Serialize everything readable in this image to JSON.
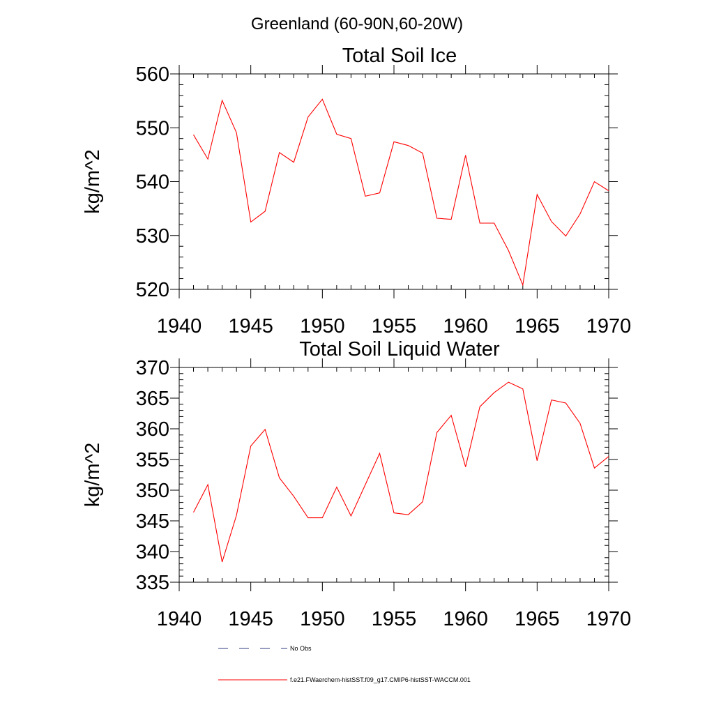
{
  "figure": {
    "title": "Greenland (60-90N,60-20W)"
  },
  "colors": {
    "axis": "#000000",
    "series": "#ff0000",
    "no_obs": "#2e3b80"
  },
  "legend": {
    "items": [
      {
        "label": "No Obs",
        "style": "dashed",
        "color": "#2e3b80"
      },
      {
        "label": "f.e21.FWaerchem-histSST.f09_g17.CMIP6-histSST-WACCM.001",
        "style": "solid",
        "color": "#ff0000"
      }
    ]
  },
  "chart_data": [
    {
      "type": "line",
      "title": "Total Soil Ice",
      "xlabel": "",
      "ylabel": "kg/m^2",
      "xlim": [
        1940,
        1970
      ],
      "ylim": [
        520,
        560
      ],
      "x_ticks": [
        1940,
        1945,
        1950,
        1955,
        1960,
        1965,
        1970
      ],
      "y_ticks": [
        520,
        530,
        540,
        550,
        560
      ],
      "x_minor_step": 1,
      "y_minor_step": 2,
      "grid": false,
      "series": [
        {
          "name": "f.e21.FWaerchem-histSST.f09_g17.CMIP6-histSST-WACCM.001",
          "color": "#ff0000",
          "x": [
            1941,
            1942,
            1943,
            1944,
            1945,
            1946,
            1947,
            1948,
            1949,
            1950,
            1951,
            1952,
            1953,
            1954,
            1955,
            1956,
            1957,
            1958,
            1959,
            1960,
            1961,
            1962,
            1963,
            1964,
            1965,
            1966,
            1967,
            1968,
            1969,
            1970
          ],
          "y": [
            548.7,
            544.2,
            555.1,
            549.1,
            532.5,
            534.5,
            545.4,
            543.6,
            552.0,
            555.3,
            548.8,
            548.0,
            537.3,
            537.9,
            547.4,
            546.7,
            545.3,
            533.2,
            533.0,
            544.9,
            532.3,
            532.3,
            527.2,
            520.8,
            537.6,
            532.6,
            529.9,
            534.0,
            540.0,
            538.3
          ]
        }
      ]
    },
    {
      "type": "line",
      "title": "Total Soil Liquid Water",
      "xlabel": "",
      "ylabel": "kg/m^2",
      "xlim": [
        1940,
        1970
      ],
      "ylim": [
        335,
        370
      ],
      "x_ticks": [
        1940,
        1945,
        1950,
        1955,
        1960,
        1965,
        1970
      ],
      "y_ticks": [
        335,
        340,
        345,
        350,
        355,
        360,
        365,
        370
      ],
      "x_minor_step": 1,
      "y_minor_step": 1,
      "grid": false,
      "series": [
        {
          "name": "f.e21.FWaerchem-histSST.f09_g17.CMIP6-histSST-WACCM.001",
          "color": "#ff0000",
          "x": [
            1941,
            1942,
            1943,
            1944,
            1945,
            1946,
            1947,
            1948,
            1949,
            1950,
            1951,
            1952,
            1953,
            1954,
            1955,
            1956,
            1957,
            1958,
            1959,
            1960,
            1961,
            1962,
            1963,
            1964,
            1965,
            1966,
            1967,
            1968,
            1969,
            1970
          ],
          "y": [
            346.4,
            350.9,
            338.3,
            345.9,
            357.2,
            359.9,
            352.0,
            349.0,
            345.5,
            345.5,
            350.5,
            345.8,
            350.9,
            356.0,
            346.3,
            346.0,
            348.1,
            359.4,
            362.2,
            353.8,
            363.6,
            365.9,
            367.6,
            366.5,
            354.8,
            364.7,
            364.2,
            360.9,
            353.6,
            355.5
          ]
        }
      ]
    }
  ]
}
